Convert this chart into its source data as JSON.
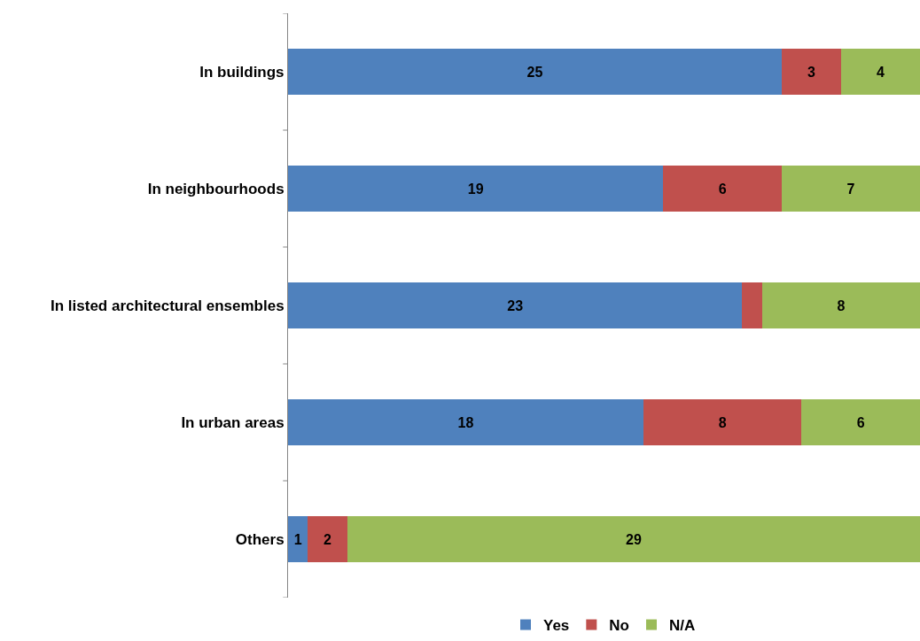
{
  "chart_data": {
    "type": "bar",
    "orientation": "horizontal",
    "stacked": true,
    "legend": "bottom",
    "categories": [
      "In buildings",
      "In neighbourhoods",
      "In listed architectural ensembles",
      "In urban areas",
      "Others"
    ],
    "series": [
      {
        "name": "Yes",
        "color": "#4f81bd",
        "values": [
          25,
          19,
          23,
          18,
          1
        ],
        "value_labels": [
          "25",
          "19",
          "23",
          "18",
          "1"
        ]
      },
      {
        "name": "No",
        "color": "#c0504d",
        "values": [
          3,
          6,
          1,
          8,
          2
        ],
        "value_labels": [
          "3",
          "6",
          null,
          "8",
          "2"
        ]
      },
      {
        "name": "N/A",
        "color": "#9bbb59",
        "values": [
          4,
          7,
          8,
          6,
          29
        ],
        "value_labels": [
          "4",
          "7",
          "8",
          "6",
          "29"
        ]
      }
    ]
  }
}
